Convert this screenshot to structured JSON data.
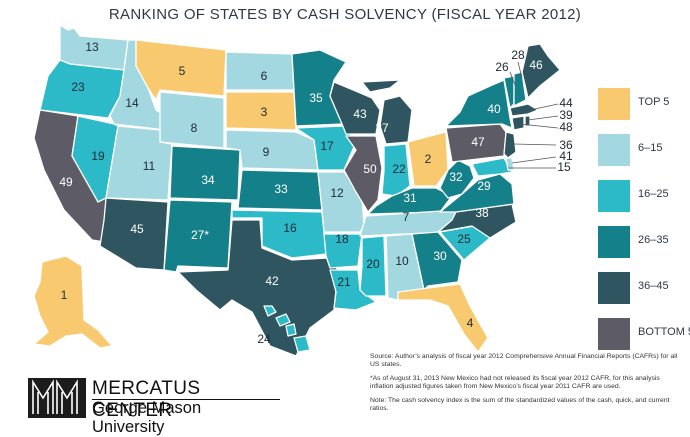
{
  "title": "RANKING OF STATES BY CASH SOLVENCY (FISCAL YEAR 2012)",
  "colors": {
    "top5": "#f8c96e",
    "r6_15": "#a3d8e1",
    "r16_25": "#2cbac8",
    "r26_35": "#14808a",
    "r36_45": "#2e5560",
    "bottom5": "#5d5b65"
  },
  "legend": [
    {
      "label": "TOP 5",
      "color": "#f8c96e"
    },
    {
      "label": "6–15",
      "color": "#a3d8e1"
    },
    {
      "label": "16–25",
      "color": "#2cbac8"
    },
    {
      "label": "26–35",
      "color": "#14808a"
    },
    {
      "label": "36–45",
      "color": "#2e5560"
    },
    {
      "label": "BOTTOM 5",
      "color": "#5d5b65"
    }
  ],
  "states": {
    "WA": "13",
    "OR": "23",
    "CA": "49",
    "ID": "14",
    "NV": "19",
    "MT": "5",
    "WY": "8",
    "UT": "11",
    "AZ": "45",
    "CO": "34",
    "NM": "27*",
    "ND": "6",
    "SD": "3",
    "NE": "9",
    "KS": "33",
    "OK": "16",
    "TX": "42",
    "MN": "35",
    "IA": "17",
    "MO": "12",
    "AR": "18",
    "LA": "21",
    "WI": "43",
    "IL": "50",
    "MI": "37",
    "IN": "22",
    "OH": "2",
    "KY": "31",
    "TN": "7",
    "MS": "20",
    "AL": "10",
    "GA": "30",
    "FL": "4",
    "SC": "25",
    "NC": "38",
    "VA": "29",
    "WV": "32",
    "PA": "47",
    "NY": "40",
    "VT": "26",
    "NH": "28",
    "ME": "46",
    "MA": "44",
    "RI": "39",
    "CT": "48",
    "NJ": "36",
    "DE": "41",
    "MD": "15",
    "AK": "1",
    "HI": "24"
  },
  "source_note": "Source: Author’s analysis of fiscal year 2012 Comprehensive Annual Financial Reports (CAFRs) for all US states.",
  "nm_note": "*As of August 31, 2013 New Mexico had not released its fiscal year 2012 CAFR, for this analysis inflation adjusted figures taken from New Mexico’s fiscal year 2011 CAFR are used.",
  "index_note": "Note: The cash solvency index is the sum of the standardized values of the cash, quick, and current ratios.",
  "logo": {
    "name": "MERCATUS CENTER",
    "subtitle": "George Mason University"
  }
}
